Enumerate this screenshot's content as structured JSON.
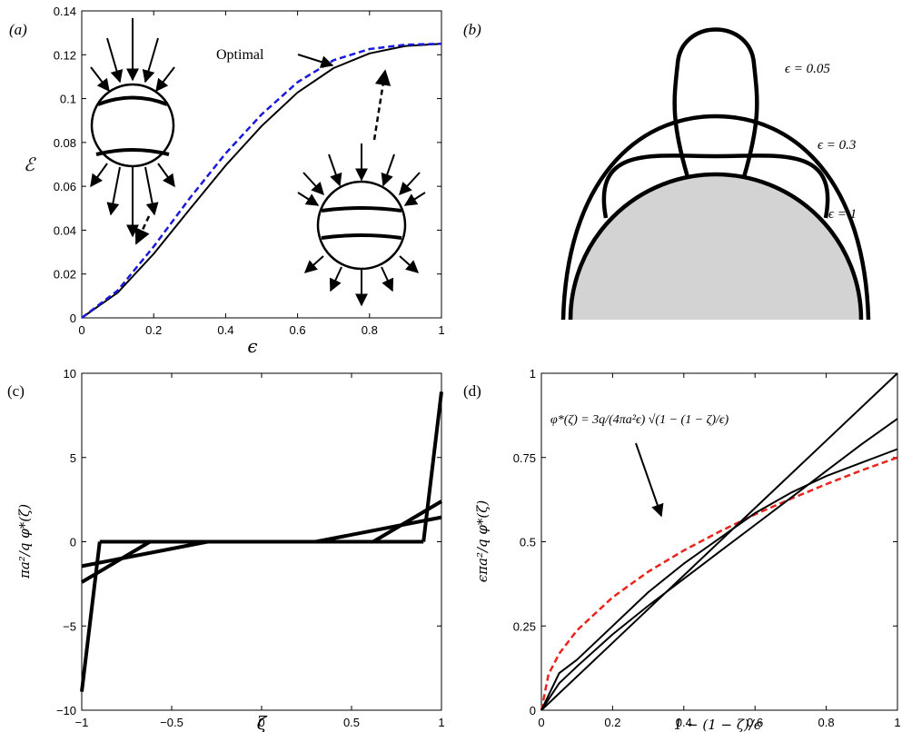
{
  "panels": {
    "a": {
      "label": "(a)"
    },
    "b": {
      "label": "(b)"
    },
    "c": {
      "label": "(c)"
    },
    "d": {
      "label": "(d)"
    }
  },
  "chart_data": [
    {
      "id": "a",
      "type": "line",
      "xlabel": "ϵ",
      "ylabel": "ℰ",
      "xlim": [
        0,
        1
      ],
      "ylim": [
        0,
        0.14
      ],
      "xticks": [
        "0",
        "0.2",
        "0.4",
        "0.6",
        "0.8",
        "1"
      ],
      "yticks": [
        "0",
        "0.02",
        "0.04",
        "0.06",
        "0.08",
        "0.1",
        "0.12",
        "0.14"
      ],
      "annotations": [
        "Optimal"
      ],
      "series": [
        {
          "style": "solid",
          "color": "#000000",
          "x": [
            0,
            0.1,
            0.2,
            0.3,
            0.4,
            0.5,
            0.6,
            0.7,
            0.8,
            0.9,
            1.0
          ],
          "y": [
            0,
            0.0115,
            0.0292,
            0.0495,
            0.0695,
            0.0875,
            0.1028,
            0.1139,
            0.1206,
            0.124,
            0.125
          ]
        },
        {
          "style": "dashed",
          "color": "#1a1adc",
          "x": [
            0,
            0.1,
            0.2,
            0.3,
            0.4,
            0.5,
            0.6,
            0.7,
            0.8,
            0.9,
            1.0
          ],
          "y": [
            0,
            0.0125,
            0.0325,
            0.0545,
            0.075,
            0.0928,
            0.1075,
            0.1175,
            0.1226,
            0.1246,
            0.125
          ]
        }
      ]
    },
    {
      "id": "b",
      "type": "diagram",
      "annotations": [
        "ϵ = 0.05",
        "ϵ = 0.3",
        "ϵ = 1"
      ]
    },
    {
      "id": "c",
      "type": "line",
      "xlabel": "ζ",
      "ylabel": "πa²/q φ*(ζ)",
      "xlim": [
        -1,
        1
      ],
      "ylim": [
        -10,
        10
      ],
      "xticks": [
        "−1",
        "−0.5",
        "0",
        "0.5",
        "1"
      ],
      "yticks": [
        "−10",
        "−5",
        "0",
        "5",
        "10"
      ],
      "series": [
        {
          "x": [
            -1,
            -0.3
          ],
          "y": [
            -1.45,
            0
          ],
          "style": "solid",
          "color": "#000000"
        },
        {
          "x": [
            0.3,
            1
          ],
          "y": [
            0,
            1.45
          ],
          "style": "solid",
          "color": "#000000"
        },
        {
          "x": [
            -1,
            -0.62
          ],
          "y": [
            -2.4,
            0
          ],
          "style": "solid",
          "color": "#000000"
        },
        {
          "x": [
            0.62,
            1
          ],
          "y": [
            0,
            2.4
          ],
          "style": "solid",
          "color": "#000000"
        },
        {
          "x": [
            -1,
            -0.9
          ],
          "y": [
            -8.9,
            0
          ],
          "style": "solid",
          "color": "#000000"
        },
        {
          "x": [
            0.9,
            1
          ],
          "y": [
            0,
            8.9
          ],
          "style": "solid",
          "color": "#000000"
        }
      ]
    },
    {
      "id": "d",
      "type": "line",
      "xlabel": "1 − (1 − ζ)/ϵ",
      "ylabel": "ϵπa²/q φ*(ζ)",
      "xlim": [
        0,
        1
      ],
      "ylim": [
        0,
        1
      ],
      "xticks": [
        "0",
        "0.2",
        "0.4",
        "0.6",
        "0.8",
        "1"
      ],
      "yticks": [
        "0",
        "0.25",
        "0.5",
        "0.75",
        "1"
      ],
      "annotations": [
        "φ*(ζ) = 3q/(4πa²ϵ) √(1 − (1 − ζ)/ϵ)"
      ],
      "series": [
        {
          "style": "dashed",
          "color": "#e8241c",
          "x": [
            0,
            0.02,
            0.05,
            0.1,
            0.2,
            0.3,
            0.4,
            0.5,
            0.6,
            0.7,
            0.8,
            0.9,
            1.0
          ],
          "y": [
            0,
            0.106,
            0.168,
            0.237,
            0.335,
            0.411,
            0.474,
            0.53,
            0.581,
            0.627,
            0.671,
            0.712,
            0.75
          ]
        },
        {
          "style": "solid",
          "color": "#000000",
          "x": [
            0,
            0.2,
            0.4,
            0.6,
            0.8,
            1.0
          ],
          "y": [
            0,
            0.2,
            0.4,
            0.6,
            0.8,
            1.0
          ]
        },
        {
          "style": "solid",
          "color": "#000000",
          "x": [
            0,
            0.05,
            0.1,
            0.2,
            0.3,
            0.4,
            0.5,
            0.6,
            0.7,
            0.8,
            0.9,
            1.0
          ],
          "y": [
            0,
            0.08,
            0.13,
            0.225,
            0.31,
            0.39,
            0.47,
            0.55,
            0.63,
            0.71,
            0.79,
            0.865
          ]
        },
        {
          "style": "solid",
          "color": "#000000",
          "x": [
            0,
            0.05,
            0.1,
            0.2,
            0.3,
            0.4,
            0.5,
            0.6,
            0.7,
            0.8,
            0.9,
            1.0
          ],
          "y": [
            0,
            0.11,
            0.15,
            0.25,
            0.35,
            0.435,
            0.51,
            0.585,
            0.645,
            0.695,
            0.735,
            0.775
          ]
        }
      ]
    }
  ]
}
